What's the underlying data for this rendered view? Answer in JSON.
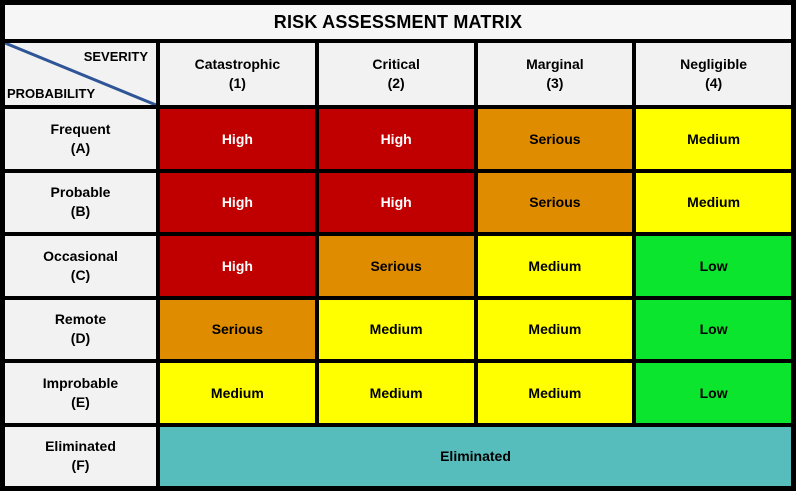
{
  "title": "RISK ASSESSMENT MATRIX",
  "corner": {
    "severity_label": "SEVERITY",
    "probability_label": "PROBABILITY"
  },
  "columns": [
    {
      "name": "Catastrophic",
      "code": "(1)"
    },
    {
      "name": "Critical",
      "code": "(2)"
    },
    {
      "name": "Marginal",
      "code": "(3)"
    },
    {
      "name": "Negligible",
      "code": "(4)"
    }
  ],
  "rows": [
    {
      "name": "Frequent",
      "code": "(A)",
      "cells": [
        "High",
        "High",
        "Serious",
        "Medium"
      ]
    },
    {
      "name": "Probable",
      "code": "(B)",
      "cells": [
        "High",
        "High",
        "Serious",
        "Medium"
      ]
    },
    {
      "name": "Occasional",
      "code": "(C)",
      "cells": [
        "High",
        "Serious",
        "Medium",
        "Low"
      ]
    },
    {
      "name": "Remote",
      "code": "(D)",
      "cells": [
        "Serious",
        "Medium",
        "Medium",
        "Low"
      ]
    },
    {
      "name": "Improbable",
      "code": "(E)",
      "cells": [
        "Medium",
        "Medium",
        "Medium",
        "Low"
      ]
    },
    {
      "name": "Eliminated",
      "code": "(F)",
      "span_label": "Eliminated"
    }
  ],
  "colors": {
    "high": "#C00000",
    "serious": "#E08C00",
    "medium": "#FFFF00",
    "low": "#0BE52E",
    "eliminated": "#56BCBC",
    "header_bg": "#F2F2F2",
    "title_bg": "#F6F6F6",
    "border": "#000000",
    "diagonal_line": "#2F5597",
    "high_text": "#FFFFFF",
    "default_text": "#000000"
  },
  "chart_data": {
    "type": "heatmap",
    "title": "RISK ASSESSMENT MATRIX",
    "x_axis_label": "SEVERITY",
    "y_axis_label": "PROBABILITY",
    "columns": [
      "Catastrophic (1)",
      "Critical (2)",
      "Marginal (3)",
      "Negligible (4)"
    ],
    "rows": [
      "Frequent (A)",
      "Probable (B)",
      "Occasional (C)",
      "Remote (D)",
      "Improbable (E)",
      "Eliminated (F)"
    ],
    "values": [
      [
        "High",
        "High",
        "Serious",
        "Medium"
      ],
      [
        "High",
        "High",
        "Serious",
        "Medium"
      ],
      [
        "High",
        "Serious",
        "Medium",
        "Low"
      ],
      [
        "Serious",
        "Medium",
        "Medium",
        "Low"
      ],
      [
        "Medium",
        "Medium",
        "Medium",
        "Low"
      ],
      [
        "Eliminated",
        "Eliminated",
        "Eliminated",
        "Eliminated"
      ]
    ],
    "cell_colors": {
      "High": "#C00000",
      "Serious": "#E08C00",
      "Medium": "#FFFF00",
      "Low": "#0BE52E",
      "Eliminated": "#56BCBC"
    },
    "legend_position": "none",
    "grid": true
  }
}
